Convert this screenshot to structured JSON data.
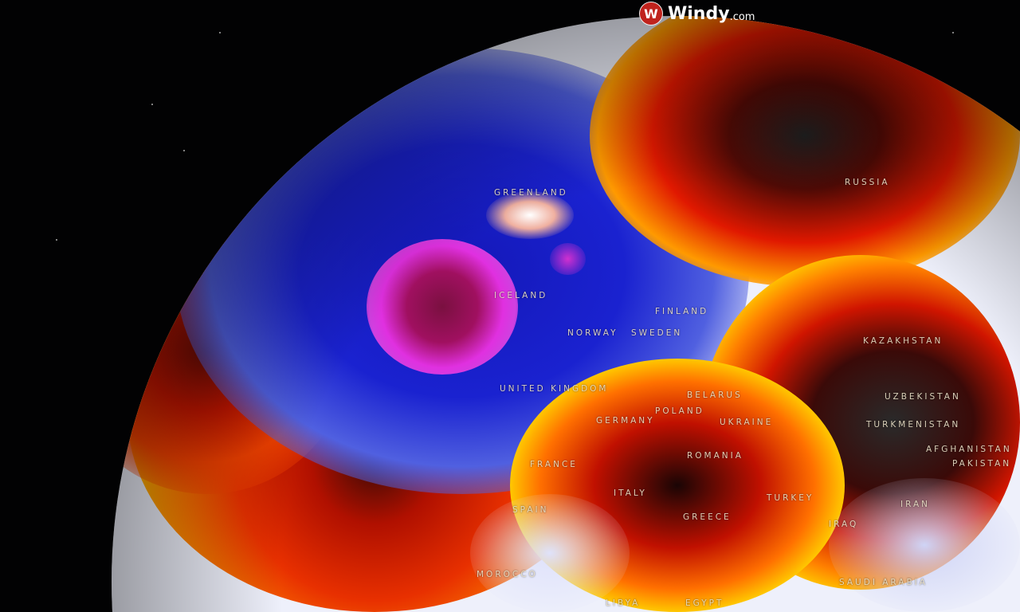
{
  "brand": {
    "name": "Windy",
    "domain_suffix": ".com",
    "icon": "windy-logo-icon",
    "color": "#c0231d"
  },
  "map": {
    "type": "globe temperature anomaly with wind particles",
    "palette": {
      "cold": "#1a1fd0",
      "very_cold": "#e020e0",
      "neutral": "#eef0fb",
      "warm": "#ffd000",
      "hot": "#e01800",
      "very_hot": "#2a2a2a"
    },
    "labels": [
      "GREENLAND",
      "RUSSIA",
      "ICELAND",
      "FINLAND",
      "NORWAY",
      "SWEDEN",
      "UNITED KINGDOM",
      "BELARUS",
      "POLAND",
      "GERMANY",
      "UKRAINE",
      "KAZAKHSTAN",
      "UZBEKISTAN",
      "TURKMENISTAN",
      "AFGHANISTAN",
      "PAKISTAN",
      "FRANCE",
      "ROMANIA",
      "ITALY",
      "SPAIN",
      "GREECE",
      "TURKEY",
      "IRAN",
      "IRAQ",
      "MOROCCO",
      "SAUDI ARABIA",
      "EGYPT",
      "LIBYA"
    ]
  }
}
